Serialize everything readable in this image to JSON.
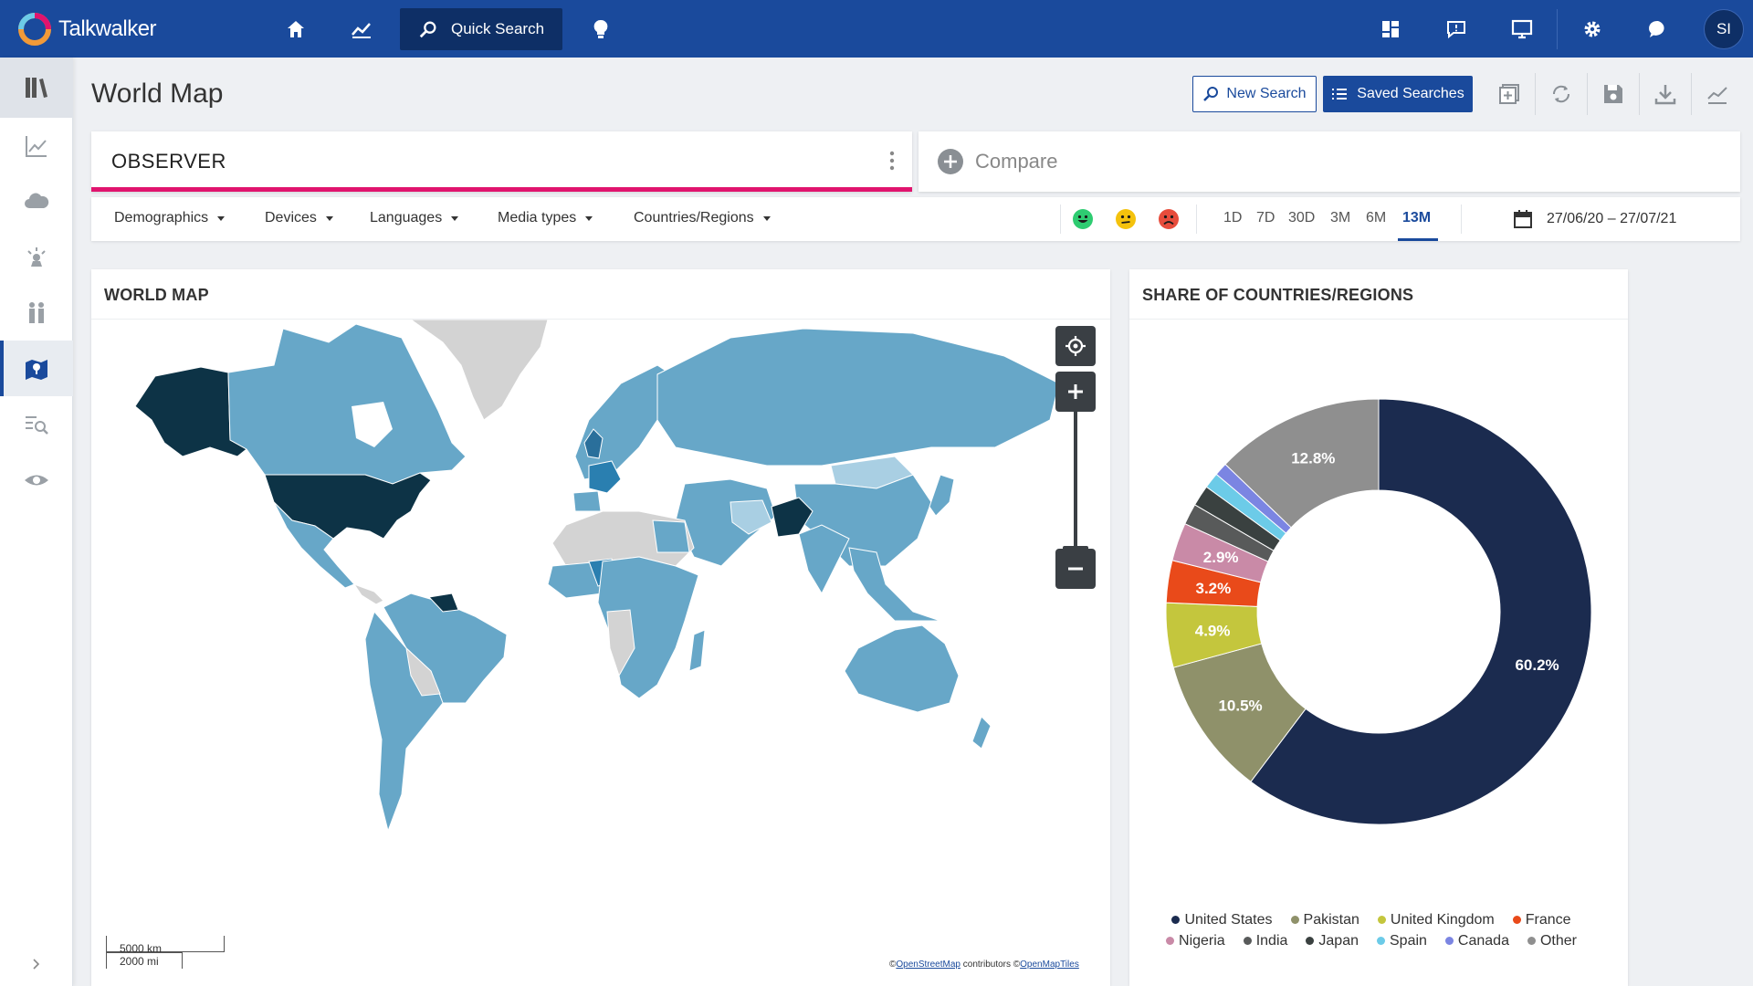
{
  "app": {
    "brand": "Talkwalker",
    "quick_search_label": "Quick Search",
    "user_initials": "SI"
  },
  "page": {
    "title": "World Map",
    "new_search_label": "New Search",
    "saved_searches_label": "Saved Searches"
  },
  "query": {
    "observer_label": "OBSERVER",
    "compare_label": "Compare"
  },
  "filters": {
    "items": [
      "Demographics",
      "Devices",
      "Languages",
      "Media types",
      "Countries/Regions"
    ],
    "periods": [
      "1D",
      "7D",
      "30D",
      "3M",
      "6M",
      "13M"
    ],
    "active_period": "13M",
    "date_range": "27/06/20 – 27/07/21"
  },
  "map_panel": {
    "title": "WORLD MAP",
    "scale_km": "5000 km",
    "scale_mi": "2000 mi",
    "attribution_prefix": "©",
    "attribution_osm": "OpenStreetMap",
    "attribution_mid": " contributors  ©",
    "attribution_tiles": "OpenMapTiles"
  },
  "share_panel": {
    "title": "SHARE OF COUNTRIES/REGIONS"
  },
  "colors": {
    "brand": "#1a4a9c",
    "accent": "#e0146e"
  },
  "chart_data": {
    "type": "pie",
    "title": "SHARE OF COUNTRIES/REGIONS",
    "legend_position": "bottom",
    "series": [
      {
        "name": "United States",
        "value": 60.2,
        "color": "#1b2b4f",
        "label": "60.2%"
      },
      {
        "name": "Pakistan",
        "value": 10.5,
        "color": "#8f916a",
        "label": "10.5%"
      },
      {
        "name": "United Kingdom",
        "value": 4.9,
        "color": "#c4c63d",
        "label": "4.9%"
      },
      {
        "name": "France",
        "value": 3.2,
        "color": "#e94a1a",
        "label": "3.2%"
      },
      {
        "name": "Nigeria",
        "value": 2.9,
        "color": "#c98aa7",
        "label": "2.9%"
      },
      {
        "name": "India",
        "value": 1.6,
        "color": "#585a5a",
        "label": ""
      },
      {
        "name": "Japan",
        "value": 1.6,
        "color": "#3a4140",
        "label": ""
      },
      {
        "name": "Spain",
        "value": 1.2,
        "color": "#6ccbe8",
        "label": ""
      },
      {
        "name": "Canada",
        "value": 1.0,
        "color": "#7b85e2",
        "label": ""
      },
      {
        "name": "Other",
        "value": 12.8,
        "color": "#8f8f8f",
        "label": "12.8%"
      }
    ]
  }
}
